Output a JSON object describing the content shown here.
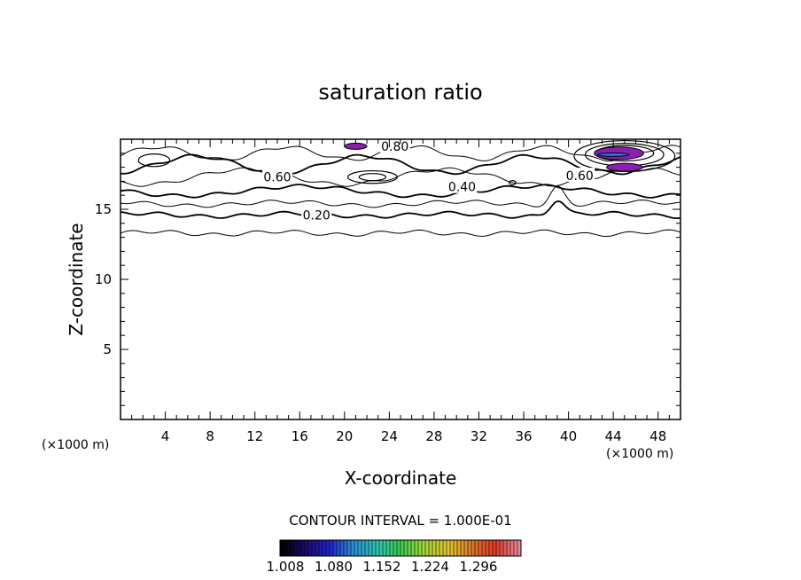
{
  "chart_data": {
    "type": "contour",
    "title": "saturation ratio",
    "xlabel": "X-coordinate",
    "ylabel": "Z-coordinate",
    "x_unit": "(×1000 m)",
    "y_unit": "(×1000 m)",
    "xlim": [
      0,
      50
    ],
    "ylim": [
      0,
      20
    ],
    "x_ticks": [
      4,
      8,
      12,
      16,
      20,
      24,
      28,
      32,
      36,
      40,
      44,
      48
    ],
    "y_ticks": [
      5,
      10,
      15
    ],
    "contour_labels": [
      {
        "text": "0.20",
        "x": 17.5,
        "y": 14.6
      },
      {
        "text": "0.40",
        "x": 30.5,
        "y": 16.6
      },
      {
        "text": "0.60",
        "x": 14.0,
        "y": 17.3
      },
      {
        "text": "0.60",
        "x": 41.0,
        "y": 17.4
      },
      {
        "text": "0.80",
        "x": 24.5,
        "y": 19.5
      }
    ],
    "contour_interval_text": "CONTOUR INTERVAL = 1.000E-01",
    "colorbar": {
      "labels": [
        "1.008",
        "1.080",
        "1.152",
        "1.224",
        "1.296"
      ],
      "colors": [
        "#000000",
        "#1c0a6e",
        "#2222cc",
        "#2e8fd6",
        "#2cc7b8",
        "#3ccf4e",
        "#a6d93a",
        "#e0c830",
        "#e07a2a",
        "#e03a2a",
        "#e88aa0"
      ]
    },
    "shaded_regions": [
      {
        "center_x": 21.0,
        "center_y": 19.5,
        "level": "supersaturated"
      },
      {
        "center_x": 44.5,
        "center_y": 19.0,
        "level": "supersaturated"
      },
      {
        "center_x": 45.0,
        "center_y": 18.0,
        "level": "supersaturated"
      }
    ]
  }
}
